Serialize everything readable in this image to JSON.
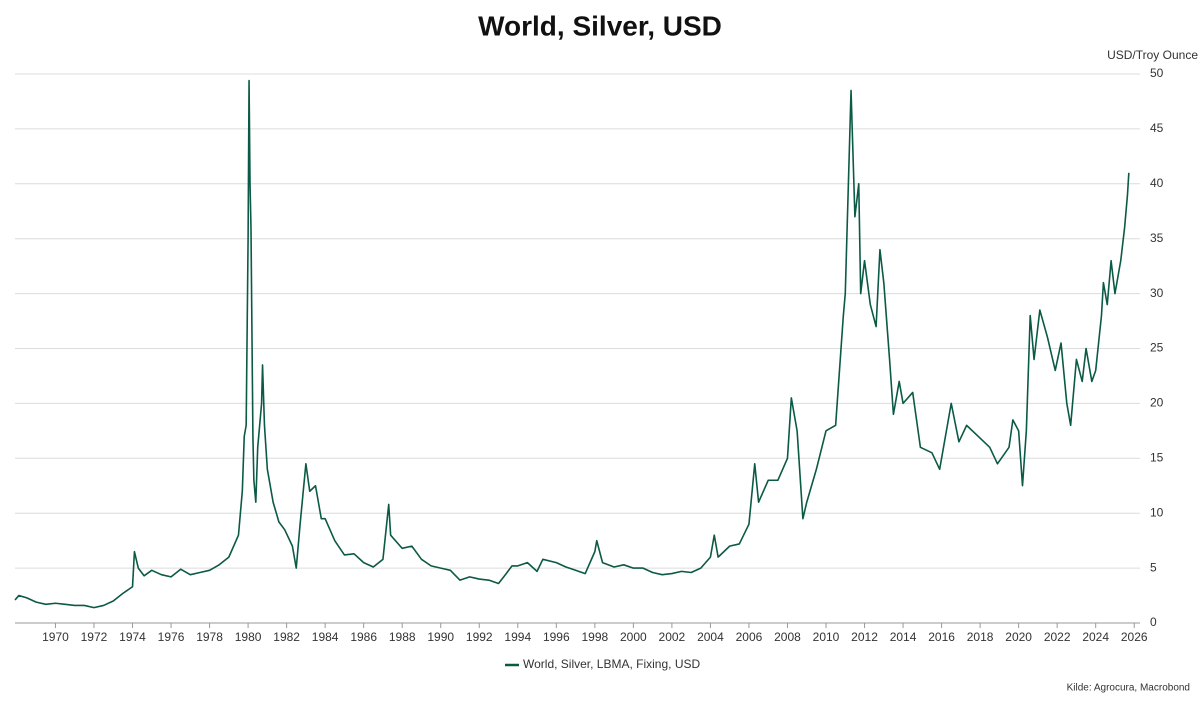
{
  "chart_data": {
    "type": "line",
    "title": "World, Silver, USD",
    "y_label": "USD/Troy Ounce",
    "source": "Kilde: Agrocura, Macrobond",
    "x": [
      1967.9,
      1968.1,
      1968.5,
      1969,
      1969.5,
      1970,
      1970.5,
      1971,
      1971.5,
      1972,
      1972.5,
      1973,
      1973.5,
      1974,
      1974.1,
      1974.3,
      1974.6,
      1975,
      1975.5,
      1976,
      1976.5,
      1977,
      1977.5,
      1978,
      1978.5,
      1979,
      1979.5,
      1979.7,
      1979.8,
      1979.9,
      1980.0,
      1980.05,
      1980.1,
      1980.15,
      1980.25,
      1980.3,
      1980.4,
      1980.5,
      1980.7,
      1980.75,
      1980.85,
      1981,
      1981.3,
      1981.6,
      1981.9,
      1982.3,
      1982.5,
      1982.7,
      1983,
      1983.2,
      1983.5,
      1983.8,
      1984,
      1984.5,
      1985,
      1985.5,
      1986,
      1986.5,
      1987,
      1987.3,
      1987.4,
      1988,
      1988.5,
      1989,
      1989.5,
      1990,
      1990.5,
      1991,
      1991.5,
      1992,
      1992.5,
      1993,
      1993.4,
      1993.7,
      1994,
      1994.5,
      1995,
      1995.3,
      1996,
      1996.5,
      1997,
      1997.5,
      1998,
      1998.1,
      1998.4,
      1999,
      1999.5,
      2000,
      2000.5,
      2001,
      2001.5,
      2002,
      2002.5,
      2003,
      2003.5,
      2004,
      2004.2,
      2004.4,
      2005,
      2005.5,
      2006,
      2006.3,
      2006.5,
      2007,
      2007.5,
      2008,
      2008.2,
      2008.5,
      2008.8,
      2009,
      2009.5,
      2010,
      2010.5,
      2010.9,
      2011.0,
      2011.3,
      2011.5,
      2011.7,
      2011.8,
      2012,
      2012.3,
      2012.6,
      2012.8,
      2013,
      2013.3,
      2013.5,
      2013.8,
      2014,
      2014.5,
      2014.9,
      2015.5,
      2015.9,
      2016.5,
      2016.9,
      2017.3,
      2017.9,
      2018.5,
      2018.9,
      2019.5,
      2019.7,
      2020,
      2020.2,
      2020.4,
      2020.6,
      2020.8,
      2021,
      2021.1,
      2021.5,
      2021.9,
      2022.2,
      2022.5,
      2022.7,
      2023,
      2023.3,
      2023.5,
      2023.8,
      2024,
      2024.3,
      2024.4,
      2024.6,
      2024.8,
      2025,
      2025.3,
      2025.5,
      2025.65,
      2025.72
    ],
    "series": [
      {
        "name": "World, Silver, LBMA, Fixing, USD",
        "color": "#0b5a45",
        "values": [
          2.1,
          2.5,
          2.3,
          1.9,
          1.7,
          1.8,
          1.7,
          1.6,
          1.6,
          1.4,
          1.6,
          2.0,
          2.7,
          3.3,
          6.5,
          5.0,
          4.3,
          4.8,
          4.4,
          4.2,
          4.9,
          4.4,
          4.6,
          4.8,
          5.3,
          6.0,
          8.0,
          12,
          17,
          18,
          35,
          49.4,
          40,
          36,
          17,
          13,
          11,
          16,
          20,
          23.5,
          18,
          14,
          11,
          9.2,
          8.5,
          7.0,
          5.0,
          9,
          14.5,
          12,
          12.5,
          9.5,
          9.5,
          7.5,
          6.2,
          6.3,
          5.5,
          5.1,
          5.8,
          10.8,
          8,
          6.8,
          7.0,
          5.8,
          5.2,
          5.0,
          4.8,
          3.9,
          4.2,
          4.0,
          3.9,
          3.6,
          4.5,
          5.2,
          5.2,
          5.5,
          4.7,
          5.8,
          5.5,
          5.1,
          4.8,
          4.5,
          6.5,
          7.5,
          5.5,
          5.1,
          5.3,
          5.0,
          5.0,
          4.6,
          4.4,
          4.5,
          4.7,
          4.6,
          5.0,
          6.0,
          8.0,
          6.0,
          7.0,
          7.2,
          9.0,
          14.5,
          11,
          13,
          13,
          15,
          20.5,
          17.5,
          9.5,
          11,
          14,
          17.5,
          18,
          28,
          30,
          48.5,
          37,
          40,
          30,
          33,
          29,
          27,
          34,
          31,
          24,
          19,
          22,
          20,
          21,
          16,
          15.5,
          14,
          20,
          16.5,
          18,
          17,
          16,
          14.5,
          16,
          18.5,
          17.5,
          12.5,
          17.5,
          28,
          24,
          27,
          28.5,
          26,
          23,
          25.5,
          20,
          18,
          24,
          22,
          25,
          22,
          23,
          28,
          31,
          29,
          33,
          30,
          33,
          36,
          39,
          41
        ]
      }
    ],
    "xlim": [
      1967.9,
      2026.3
    ],
    "xticks": [
      1970,
      1972,
      1974,
      1976,
      1978,
      1980,
      1982,
      1984,
      1986,
      1988,
      1990,
      1992,
      1994,
      1996,
      1998,
      2000,
      2002,
      2004,
      2006,
      2008,
      2010,
      2012,
      2014,
      2016,
      2018,
      2020,
      2022,
      2024,
      2026
    ],
    "ylim": [
      0,
      50
    ],
    "yticks": [
      0,
      5,
      10,
      15,
      20,
      25,
      30,
      35,
      40,
      45,
      50
    ],
    "grid": true
  }
}
